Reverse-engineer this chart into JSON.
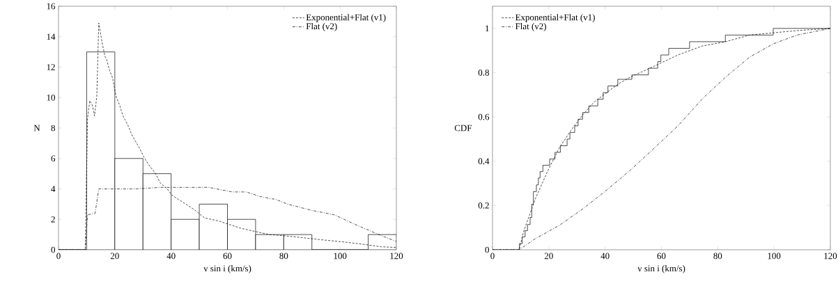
{
  "chart_data": [
    {
      "type": "histogram",
      "xlabel": "v sin i (km/s)",
      "ylabel": "N",
      "bins": [
        0,
        10,
        20,
        30,
        40,
        50,
        60,
        70,
        80,
        90,
        100,
        110,
        120
      ],
      "values": [
        0,
        13,
        6,
        5,
        2,
        3,
        2,
        1,
        1,
        0,
        0,
        1
      ],
      "color": "#000000",
      "series": [
        {
          "type": "line",
          "name": "Exponential+Flat (v1)",
          "color": "#000000",
          "line_style": "dashed",
          "x": [
            0,
            9.5,
            10.3,
            11.1,
            12.0,
            12.8,
            13.6,
            14.3,
            15.5,
            16.5,
            17.1,
            18.1,
            19.2,
            20.4,
            21.7,
            22.9,
            24.6,
            26.2,
            28.7,
            30.3,
            32,
            34.5,
            36.1,
            38.6,
            40.2,
            42.7,
            45.2,
            48.5,
            51.8,
            56.7,
            61.7,
            65,
            69.9,
            74.9,
            81.4,
            86.4,
            93.8,
            102,
            108.7,
            114.4,
            120
          ],
          "values": [
            0,
            0,
            8.6,
            9.8,
            9.5,
            8.8,
            10.1,
            14.9,
            13.6,
            12.7,
            12.5,
            11.8,
            11.3,
            10.1,
            9.5,
            8.8,
            8.2,
            7.5,
            6.7,
            6.1,
            5.6,
            5.0,
            4.4,
            4.0,
            3.6,
            3.3,
            3.0,
            2.6,
            2.1,
            1.9,
            1.6,
            1.4,
            1.2,
            1.0,
            0.9,
            0.8,
            0.65,
            0.5,
            0.35,
            0.2,
            0.15
          ]
        },
        {
          "type": "line",
          "name": "Flat (v2)",
          "color": "#000000",
          "line_style": "dashdot",
          "x": [
            0,
            9.5,
            10.3,
            13,
            14.3,
            19.6,
            27.9,
            36.1,
            42.7,
            53.4,
            61.7,
            66.6,
            71.6,
            77.3,
            81.4,
            89.7,
            97.9,
            106.2,
            114.4,
            120
          ],
          "values": [
            0,
            0,
            2.3,
            2.4,
            4.0,
            4.0,
            4.0,
            4.1,
            4.1,
            4.1,
            3.8,
            3.8,
            3.5,
            3.3,
            3.0,
            2.6,
            2.3,
            1.6,
            0.95,
            0.55
          ]
        }
      ],
      "xlim": [
        0,
        120
      ],
      "ylim": [
        0,
        16
      ],
      "xticks": [
        0,
        20,
        40,
        60,
        80,
        100,
        120
      ],
      "yticks": [
        0,
        2,
        4,
        6,
        8,
        10,
        12,
        14,
        16
      ],
      "legend": "top right",
      "grid": false
    },
    {
      "type": "line",
      "xlabel": "v sin i (km/s)",
      "ylabel": "CDF",
      "series": [
        {
          "type": "step",
          "color": "#000000",
          "line_style": "solid",
          "x": [
            0,
            9.55,
            10.57,
            11.58,
            12.43,
            13.36,
            13.95,
            14.54,
            15.6,
            16.3,
            16.9,
            17.9,
            20.3,
            22.2,
            24.1,
            26.5,
            27.5,
            29.2,
            30.4,
            32.0,
            34.2,
            37.4,
            39.3,
            41.0,
            44.5,
            49.5,
            55.4,
            58.7,
            59.8,
            62.6,
            70.0,
            82.7,
            99.7,
            120
          ],
          "values": [
            0,
            0.028,
            0.058,
            0.086,
            0.114,
            0.146,
            0.206,
            0.263,
            0.293,
            0.324,
            0.353,
            0.382,
            0.41,
            0.44,
            0.47,
            0.5,
            0.53,
            0.56,
            0.59,
            0.62,
            0.65,
            0.68,
            0.71,
            0.74,
            0.77,
            0.79,
            0.82,
            0.85,
            0.88,
            0.91,
            0.94,
            0.97,
            1.0,
            1.0
          ]
        },
        {
          "type": "line",
          "name": "Exponential+Flat (v1)",
          "color": "#000000",
          "line_style": "dashed",
          "x": [
            0,
            9.5,
            11,
            15.2,
            19.4,
            23.7,
            27.9,
            32.1,
            36.3,
            40.6,
            44.8,
            49,
            57.5,
            65.9,
            74.4,
            82.8,
            91.3,
            99.7,
            108.2,
            120
          ],
          "values": [
            0,
            0,
            0.08,
            0.23,
            0.35,
            0.46,
            0.54,
            0.61,
            0.67,
            0.71,
            0.75,
            0.78,
            0.83,
            0.88,
            0.92,
            0.94,
            0.97,
            0.98,
            0.99,
            1
          ]
        },
        {
          "type": "line",
          "name": "Flat (v2)",
          "color": "#000000",
          "line_style": "dashdot",
          "x": [
            0,
            9.5,
            15.2,
            23.7,
            32.1,
            40.6,
            49,
            57.5,
            65.9,
            74.4,
            82.8,
            91.3,
            99.7,
            108.2,
            120
          ],
          "values": [
            0,
            0,
            0.05,
            0.11,
            0.185,
            0.27,
            0.36,
            0.46,
            0.56,
            0.68,
            0.78,
            0.87,
            0.93,
            0.97,
            1
          ]
        }
      ],
      "xlim": [
        0,
        120
      ],
      "ylim": [
        0,
        1.1
      ],
      "xticks": [
        0,
        20,
        40,
        60,
        80,
        100,
        120
      ],
      "yticks": [
        0,
        0.2,
        0.4,
        0.6,
        0.8,
        1
      ],
      "legend": "top left",
      "grid": false
    }
  ]
}
